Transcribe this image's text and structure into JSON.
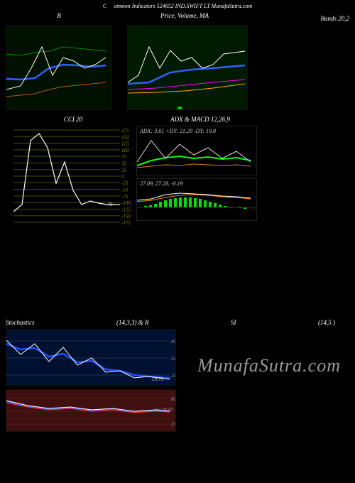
{
  "header": {
    "left": "C",
    "mid": "ommon Indicators 524652 IND.SWIFT LT MunafaSutra.com"
  },
  "bb_panel": {
    "title": "B",
    "bg": "#001100",
    "upper": {
      "color": "#008800",
      "points": [
        0,
        40,
        20,
        42,
        40,
        38,
        60,
        36,
        80,
        30,
        100,
        32,
        120,
        34,
        140,
        36
      ]
    },
    "lower": {
      "color": "#b06000",
      "points": [
        0,
        100,
        20,
        98,
        40,
        96,
        60,
        90,
        80,
        86,
        100,
        84,
        120,
        82,
        140,
        80
      ]
    },
    "mid": {
      "color": "#3060ff",
      "width": 2.5,
      "points": [
        0,
        75,
        20,
        76,
        40,
        74,
        60,
        60,
        80,
        55,
        100,
        56,
        120,
        58,
        140,
        56
      ]
    },
    "price": {
      "color": "#ffffff",
      "points": [
        0,
        90,
        20,
        85,
        35,
        60,
        50,
        30,
        65,
        70,
        80,
        45,
        95,
        50,
        110,
        60,
        125,
        55,
        140,
        45
      ]
    }
  },
  "price_panel": {
    "title": "Price,  Volume,  MA",
    "bg": "#001a00",
    "price": {
      "color": "#ffffff",
      "points": [
        0,
        80,
        15,
        70,
        30,
        30,
        45,
        60,
        60,
        35,
        75,
        50,
        90,
        45,
        105,
        60,
        120,
        55,
        135,
        40,
        150,
        38,
        165,
        36
      ]
    },
    "ma1": {
      "color": "#3060ff",
      "width": 2.5,
      "points": [
        0,
        82,
        30,
        80,
        60,
        66,
        90,
        62,
        120,
        60,
        165,
        56
      ]
    },
    "ma2": {
      "color": "#ff00ff",
      "points": [
        0,
        90,
        40,
        88,
        80,
        84,
        120,
        80,
        165,
        76
      ]
    },
    "ma3": {
      "color": "#ffaa00",
      "points": [
        0,
        95,
        40,
        94,
        80,
        92,
        120,
        88,
        165,
        82
      ]
    },
    "vol": {
      "color": "#00cc00",
      "bars": [
        0,
        0,
        0,
        0,
        0,
        0,
        0,
        4,
        0,
        0,
        0,
        0,
        0,
        0,
        0,
        0,
        0
      ]
    }
  },
  "bands_label": "Bands 20,2",
  "cci_panel": {
    "title": "CCI 20",
    "bg": "#000000",
    "grid_color": "#405000",
    "ticks": [
      175,
      150,
      125,
      100,
      75,
      50,
      25,
      0,
      -25,
      -50,
      -75,
      -100,
      -125,
      -150,
      -175
    ],
    "line": {
      "color": "#ffffff",
      "points": [
        0,
        120,
        12,
        110,
        24,
        20,
        36,
        10,
        48,
        30,
        60,
        80,
        72,
        50,
        84,
        90,
        96,
        110,
        108,
        105,
        120,
        108,
        132,
        110,
        150,
        110
      ]
    },
    "current": "-79",
    "current_color": "#999999"
  },
  "adx_panel": {
    "title": "ADX     & MACD 12,26,9",
    "text": "ADX: 3.61 +DY: 21.29 -DY: 19.8",
    "adx": {
      "color": "#dddddd",
      "points": [
        0,
        50,
        20,
        20,
        40,
        45,
        60,
        25,
        80,
        40,
        100,
        30,
        120,
        45,
        140,
        35,
        160,
        50
      ]
    },
    "dplus": {
      "color": "#00ff00",
      "width": 2,
      "points": [
        0,
        55,
        20,
        48,
        40,
        44,
        60,
        42,
        80,
        45,
        100,
        43,
        120,
        46,
        140,
        44,
        160,
        48
      ]
    },
    "dminus": {
      "color": "#cc8800",
      "points": [
        0,
        58,
        20,
        56,
        40,
        54,
        60,
        55,
        80,
        53,
        100,
        54,
        120,
        55,
        140,
        54,
        160,
        56
      ]
    }
  },
  "macd_panel": {
    "text": "27.09,  27.28,  -0.19",
    "macd": {
      "color": "#ffffff",
      "points": [
        0,
        30,
        20,
        28,
        40,
        22,
        60,
        20,
        80,
        21,
        100,
        22,
        120,
        24,
        140,
        25,
        160,
        27
      ]
    },
    "signal": {
      "color": "#ff8800",
      "points": [
        0,
        32,
        20,
        30,
        40,
        26,
        60,
        23,
        80,
        22,
        100,
        23,
        120,
        25,
        140,
        26,
        160,
        28
      ]
    },
    "hist": {
      "color": "#00dd00",
      "bars": [
        2,
        3,
        5,
        8,
        10,
        12,
        13,
        14,
        14,
        14,
        13,
        12,
        10,
        8,
        6,
        4,
        2,
        1,
        0,
        -1,
        -2
      ]
    }
  },
  "stoch_title": {
    "left": "Stochastics",
    "mid": "(14,3,3) & R",
    "mid2": "SI",
    "right": "(14,5                                )"
  },
  "stoch_panel": {
    "bg": "#001030",
    "ticks": [
      80,
      50,
      20
    ],
    "k": {
      "color": "#ffffff",
      "points": [
        0,
        15,
        20,
        35,
        40,
        20,
        60,
        45,
        80,
        25,
        100,
        50,
        120,
        40,
        140,
        60,
        160,
        58,
        180,
        68,
        200,
        66,
        230,
        70
      ]
    },
    "d": {
      "color": "#2050ff",
      "width": 2.5,
      "points": [
        0,
        20,
        20,
        28,
        40,
        26,
        60,
        38,
        80,
        34,
        100,
        46,
        120,
        44,
        140,
        56,
        160,
        58,
        180,
        64,
        200,
        66,
        230,
        68
      ]
    },
    "current": "19.79"
  },
  "rsi_panel": {
    "bg": "#401010",
    "ticks": [
      80,
      "53.28",
      50,
      20
    ],
    "line1": {
      "color": "#ffffff",
      "points": [
        0,
        15,
        30,
        22,
        60,
        26,
        90,
        24,
        120,
        28,
        150,
        26,
        180,
        30,
        210,
        28,
        230,
        30
      ]
    },
    "line2": {
      "color": "#ff3030",
      "points": [
        0,
        18,
        30,
        24,
        60,
        28,
        90,
        26,
        120,
        30,
        150,
        28,
        180,
        32,
        210,
        30,
        230,
        31
      ]
    },
    "line3": {
      "color": "#4060ff",
      "width": 2,
      "points": [
        0,
        16,
        30,
        23,
        60,
        27,
        90,
        25,
        120,
        29,
        150,
        27,
        180,
        31,
        210,
        29,
        230,
        30
      ]
    }
  },
  "watermark": "MunafaSutra.com"
}
